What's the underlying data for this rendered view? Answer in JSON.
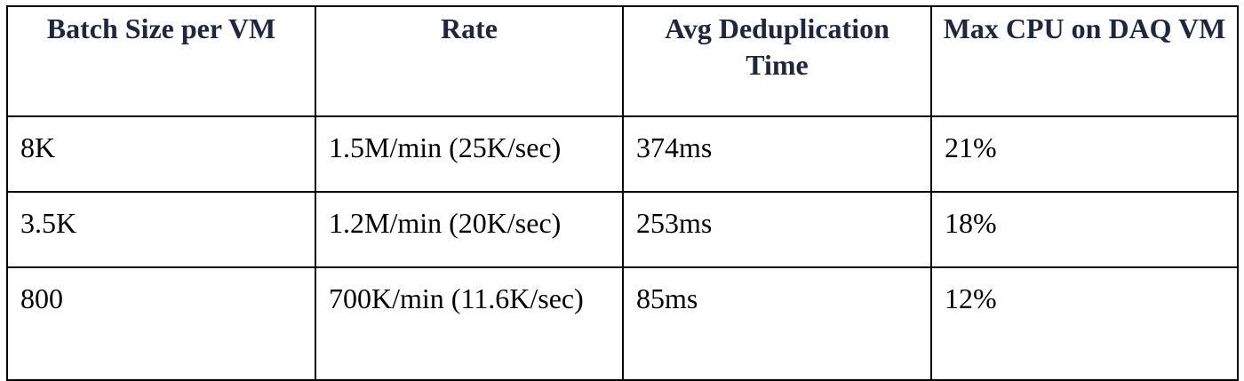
{
  "table": {
    "headers": [
      "Batch Size per VM",
      "Rate",
      "Avg Deduplication Time",
      "Max CPU on DAQ VM"
    ],
    "rows": [
      [
        "8K",
        "1.5M/min (25K/sec)",
        "374ms",
        "21%"
      ],
      [
        "3.5K",
        "1.2M/min (20K/sec)",
        "253ms",
        "18%"
      ],
      [
        "800",
        "700K/min (11.6K/sec)",
        "85ms",
        "12%"
      ]
    ]
  }
}
